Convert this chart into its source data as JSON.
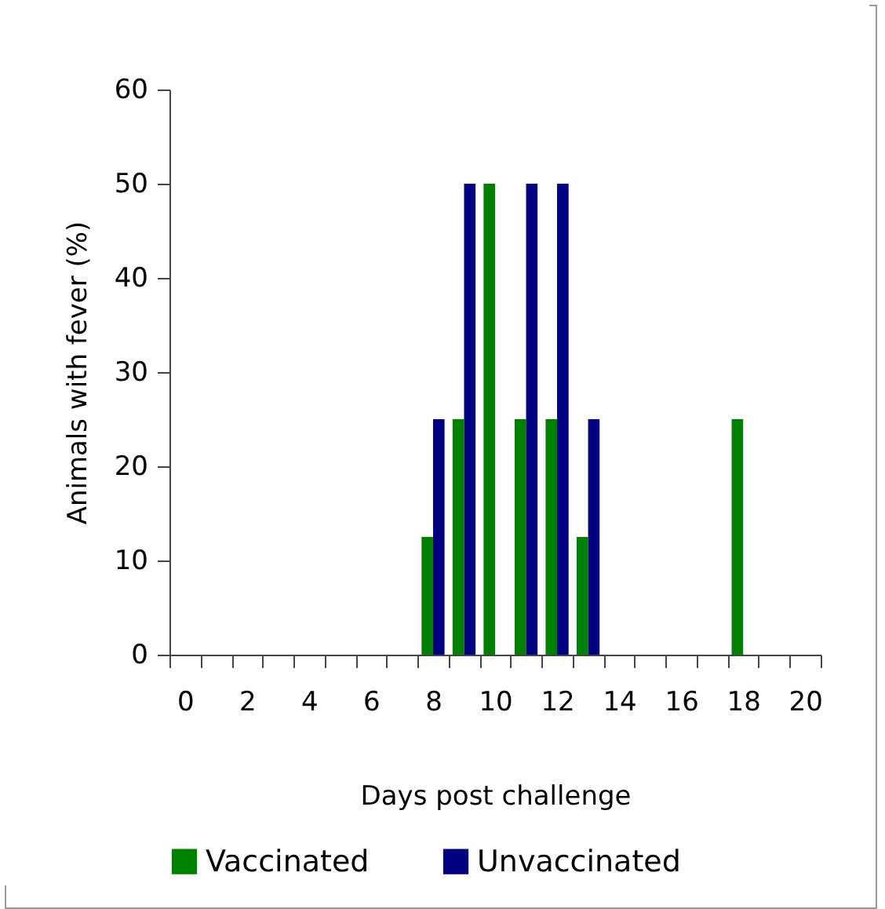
{
  "chart_data": {
    "type": "bar",
    "xlabel": "Days post challenge",
    "ylabel": "Animals with fever (%)",
    "categories": [
      "0",
      null,
      "2",
      null,
      "4",
      null,
      "6",
      null,
      "8",
      null,
      "10",
      null,
      "12",
      null,
      "14",
      null,
      "16",
      null,
      "18",
      null,
      "20"
    ],
    "series": [
      {
        "name": "Vaccinated",
        "color": "#008000",
        "values": [
          0,
          0,
          0,
          0,
          0,
          0,
          0,
          0,
          12.5,
          25,
          50,
          25,
          25,
          12.5,
          0,
          0,
          0,
          0,
          25,
          0,
          0
        ]
      },
      {
        "name": "Unvaccinated",
        "color": "#000080",
        "values": [
          0,
          0,
          0,
          0,
          0,
          0,
          0,
          0,
          25,
          50,
          0,
          50,
          50,
          25,
          0,
          0,
          0,
          0,
          0,
          0,
          0
        ]
      }
    ],
    "ylim": [
      0,
      60
    ],
    "yticks": [
      0,
      10,
      20,
      30,
      40,
      50,
      60
    ],
    "grid": false,
    "legend": "bottom"
  }
}
